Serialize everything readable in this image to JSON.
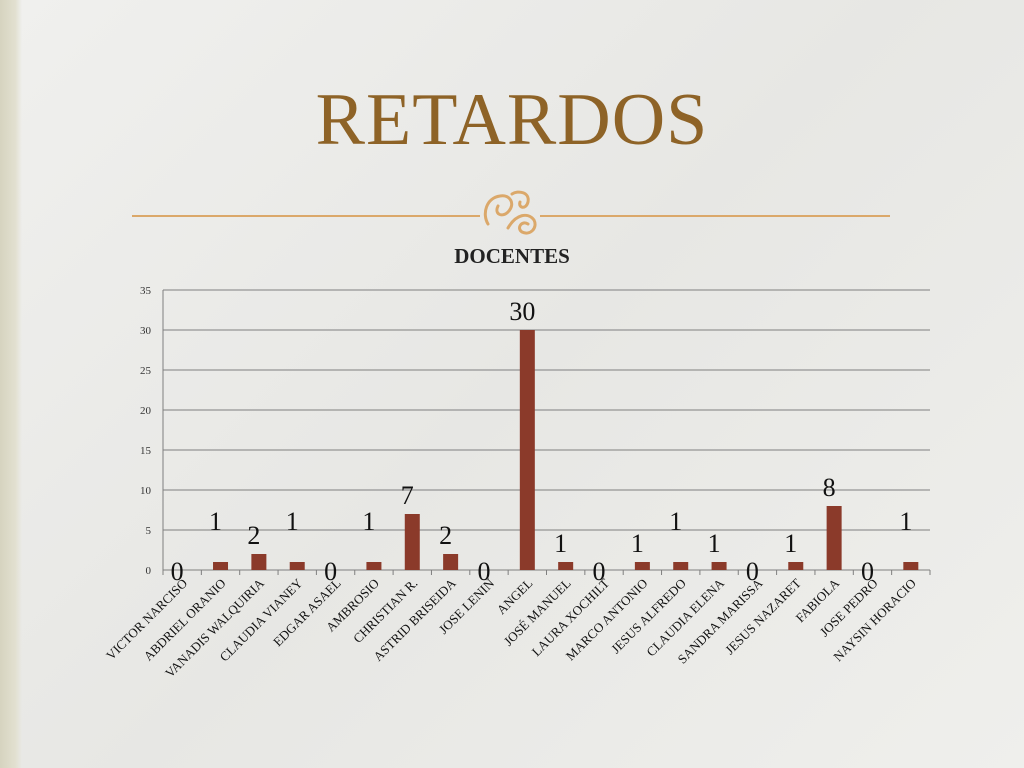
{
  "slide": {
    "title": "RETARDOS"
  },
  "colors": {
    "title": "#8e6327",
    "bar": "#8b3a2a",
    "divider": "#dba86a",
    "grid": "#7f7f7f"
  },
  "chart_data": {
    "type": "bar",
    "title": "DOCENTES",
    "xlabel": "",
    "ylabel": "",
    "ylim": [
      0,
      35
    ],
    "yticks": [
      0,
      5,
      10,
      15,
      20,
      25,
      30,
      35
    ],
    "grid": true,
    "legend": "none",
    "categories": [
      "VICTOR NARCISO",
      "ABDRIEL ORANIO",
      "VANADIS WALQUIRIA",
      "CLAUDIA VIANEY",
      "EDGAR ASAEL",
      "AMBROSIO",
      "CHRISTIAN R.",
      "ASTRID BRISEIDA",
      "JOSE LENIN",
      "ANGEL",
      "JOSÉ MANUEL",
      "LAURA XOCHILT",
      "MARCO ANTONIO",
      "JESUS ALFREDO",
      "CLAUDIA ELENA",
      "SANDRA MARISSA",
      "JESUS NAZARET",
      "FABIOLA",
      "JOSE PEDRO",
      "NAYSIN HORACIO"
    ],
    "values": [
      0,
      1,
      2,
      1,
      0,
      1,
      7,
      2,
      0,
      30,
      1,
      0,
      1,
      1,
      1,
      0,
      1,
      8,
      0,
      1
    ],
    "data_labels": [
      "0",
      "1",
      "2",
      "1",
      "0",
      "1",
      "7",
      "2",
      "0",
      "30",
      "1",
      "0",
      "1",
      "1",
      "1",
      "0",
      "1",
      "8",
      "0",
      "1"
    ]
  }
}
